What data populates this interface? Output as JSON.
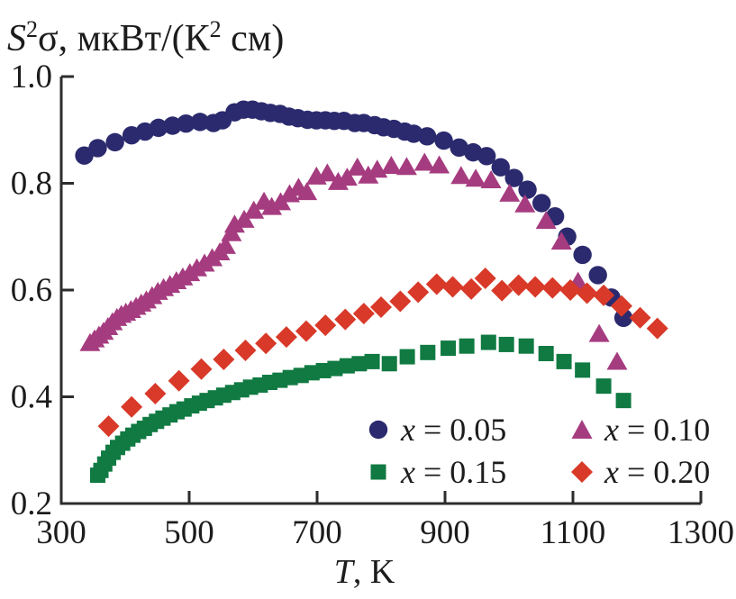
{
  "chart_data": {
    "type": "scatter",
    "title_plain": "S²σ, мкВт/(К² см)",
    "title_parts": {
      "s": "S",
      "s_sup": "2",
      "mid": "σ, мкВт/(К",
      "mid_sup": "2",
      "end": " см)"
    },
    "xlabel_plain": "T, K",
    "xlabel_parts": {
      "var": "T",
      "rest": ", K"
    },
    "xlim": [
      300,
      1300
    ],
    "ylim": [
      0.2,
      1.0
    ],
    "x_ticks": [
      300,
      500,
      700,
      900,
      1100,
      1300
    ],
    "y_ticks": [
      0.2,
      0.4,
      0.6,
      0.8,
      1.0
    ],
    "grid": false,
    "legend_position": "inside bottom-right, 2 columns x 2 rows",
    "axis_color": "#2d2d2d",
    "text_color": "#1c1c1c",
    "series": [
      {
        "id": "x-0.05",
        "marker": "circle",
        "color": "#2b2a6e",
        "legend": {
          "var": "x",
          "rest": " = 0.05"
        },
        "points": [
          [
            336,
            0.852
          ],
          [
            357,
            0.866
          ],
          [
            384,
            0.877
          ],
          [
            410,
            0.89
          ],
          [
            431,
            0.897
          ],
          [
            452,
            0.904
          ],
          [
            474,
            0.908
          ],
          [
            495,
            0.912
          ],
          [
            517,
            0.915
          ],
          [
            538,
            0.913
          ],
          [
            552,
            0.918
          ],
          [
            571,
            0.933
          ],
          [
            585,
            0.938
          ],
          [
            599,
            0.938
          ],
          [
            613,
            0.935
          ],
          [
            627,
            0.932
          ],
          [
            642,
            0.93
          ],
          [
            656,
            0.925
          ],
          [
            670,
            0.922
          ],
          [
            685,
            0.919
          ],
          [
            699,
            0.918
          ],
          [
            713,
            0.918
          ],
          [
            727,
            0.917
          ],
          [
            742,
            0.917
          ],
          [
            759,
            0.913
          ],
          [
            773,
            0.913
          ],
          [
            790,
            0.909
          ],
          [
            804,
            0.905
          ],
          [
            820,
            0.902
          ],
          [
            837,
            0.897
          ],
          [
            851,
            0.893
          ],
          [
            872,
            0.888
          ],
          [
            898,
            0.88
          ],
          [
            922,
            0.867
          ],
          [
            944,
            0.858
          ],
          [
            965,
            0.851
          ],
          [
            987,
            0.83
          ],
          [
            1008,
            0.81
          ],
          [
            1029,
            0.788
          ],
          [
            1051,
            0.763
          ],
          [
            1072,
            0.738
          ],
          [
            1091,
            0.7
          ],
          [
            1115,
            0.666
          ],
          [
            1139,
            0.628
          ],
          [
            1160,
            0.586
          ],
          [
            1179,
            0.548
          ]
        ]
      },
      {
        "id": "x-0.10",
        "marker": "triangle",
        "color": "#a63c80",
        "legend": {
          "var": "x",
          "rest": " = 0.10"
        },
        "points": [
          [
            345,
            0.5
          ],
          [
            352,
            0.507
          ],
          [
            359,
            0.514
          ],
          [
            366,
            0.521
          ],
          [
            373,
            0.53
          ],
          [
            380,
            0.539
          ],
          [
            387,
            0.547
          ],
          [
            394,
            0.553
          ],
          [
            401,
            0.557
          ],
          [
            409,
            0.562
          ],
          [
            417,
            0.568
          ],
          [
            425,
            0.574
          ],
          [
            433,
            0.58
          ],
          [
            442,
            0.588
          ],
          [
            451,
            0.596
          ],
          [
            460,
            0.603
          ],
          [
            470,
            0.609
          ],
          [
            480,
            0.616
          ],
          [
            490,
            0.623
          ],
          [
            501,
            0.631
          ],
          [
            512,
            0.64
          ],
          [
            524,
            0.649
          ],
          [
            536,
            0.659
          ],
          [
            548,
            0.67
          ],
          [
            557,
            0.682
          ],
          [
            566,
            0.706
          ],
          [
            571,
            0.722
          ],
          [
            586,
            0.731
          ],
          [
            601,
            0.748
          ],
          [
            617,
            0.765
          ],
          [
            629,
            0.755
          ],
          [
            643,
            0.764
          ],
          [
            657,
            0.779
          ],
          [
            671,
            0.791
          ],
          [
            684,
            0.783
          ],
          [
            699,
            0.812
          ],
          [
            716,
            0.818
          ],
          [
            733,
            0.802
          ],
          [
            747,
            0.81
          ],
          [
            763,
            0.829
          ],
          [
            780,
            0.814
          ],
          [
            794,
            0.825
          ],
          [
            816,
            0.832
          ],
          [
            840,
            0.83
          ],
          [
            868,
            0.838
          ],
          [
            891,
            0.833
          ],
          [
            925,
            0.813
          ],
          [
            948,
            0.808
          ],
          [
            972,
            0.805
          ],
          [
            1001,
            0.78
          ],
          [
            1025,
            0.76
          ],
          [
            1058,
            0.729
          ],
          [
            1082,
            0.69
          ],
          [
            1108,
            0.615
          ],
          [
            1141,
            0.517
          ],
          [
            1169,
            0.465
          ]
        ]
      },
      {
        "id": "x-0.15",
        "marker": "square",
        "color": "#107a42",
        "legend": {
          "var": "x",
          "rest": " = 0.15"
        },
        "points": [
          [
            357,
            0.253
          ],
          [
            362,
            0.262
          ],
          [
            368,
            0.274
          ],
          [
            374,
            0.285
          ],
          [
            381,
            0.296
          ],
          [
            388,
            0.305
          ],
          [
            396,
            0.313
          ],
          [
            404,
            0.321
          ],
          [
            412,
            0.328
          ],
          [
            421,
            0.335
          ],
          [
            430,
            0.341
          ],
          [
            439,
            0.348
          ],
          [
            449,
            0.354
          ],
          [
            459,
            0.36
          ],
          [
            470,
            0.366
          ],
          [
            481,
            0.372
          ],
          [
            492,
            0.377
          ],
          [
            504,
            0.383
          ],
          [
            516,
            0.388
          ],
          [
            528,
            0.393
          ],
          [
            541,
            0.398
          ],
          [
            554,
            0.403
          ],
          [
            568,
            0.408
          ],
          [
            582,
            0.413
          ],
          [
            596,
            0.418
          ],
          [
            611,
            0.422
          ],
          [
            626,
            0.427
          ],
          [
            642,
            0.431
          ],
          [
            658,
            0.436
          ],
          [
            675,
            0.44
          ],
          [
            692,
            0.445
          ],
          [
            710,
            0.449
          ],
          [
            728,
            0.453
          ],
          [
            747,
            0.458
          ],
          [
            766,
            0.462
          ],
          [
            786,
            0.466
          ],
          [
            813,
            0.462
          ],
          [
            841,
            0.475
          ],
          [
            873,
            0.483
          ],
          [
            905,
            0.491
          ],
          [
            934,
            0.495
          ],
          [
            968,
            0.502
          ],
          [
            996,
            0.498
          ],
          [
            1027,
            0.495
          ],
          [
            1058,
            0.481
          ],
          [
            1086,
            0.466
          ],
          [
            1115,
            0.45
          ],
          [
            1148,
            0.42
          ],
          [
            1179,
            0.393
          ]
        ]
      },
      {
        "id": "x-0.20",
        "marker": "diamond",
        "color": "#d83928",
        "legend": {
          "var": "x",
          "rest": " = 0.20"
        },
        "points": [
          [
            374,
            0.345
          ],
          [
            410,
            0.381
          ],
          [
            447,
            0.406
          ],
          [
            484,
            0.43
          ],
          [
            519,
            0.452
          ],
          [
            554,
            0.47
          ],
          [
            588,
            0.487
          ],
          [
            620,
            0.5
          ],
          [
            652,
            0.512
          ],
          [
            683,
            0.523
          ],
          [
            713,
            0.534
          ],
          [
            744,
            0.545
          ],
          [
            773,
            0.556
          ],
          [
            800,
            0.568
          ],
          [
            830,
            0.579
          ],
          [
            858,
            0.596
          ],
          [
            887,
            0.611
          ],
          [
            912,
            0.606
          ],
          [
            941,
            0.602
          ],
          [
            963,
            0.622
          ],
          [
            989,
            0.599
          ],
          [
            1015,
            0.609
          ],
          [
            1041,
            0.606
          ],
          [
            1068,
            0.604
          ],
          [
            1096,
            0.6
          ],
          [
            1122,
            0.594
          ],
          [
            1148,
            0.59
          ],
          [
            1176,
            0.57
          ],
          [
            1205,
            0.548
          ],
          [
            1232,
            0.528
          ]
        ]
      }
    ]
  }
}
